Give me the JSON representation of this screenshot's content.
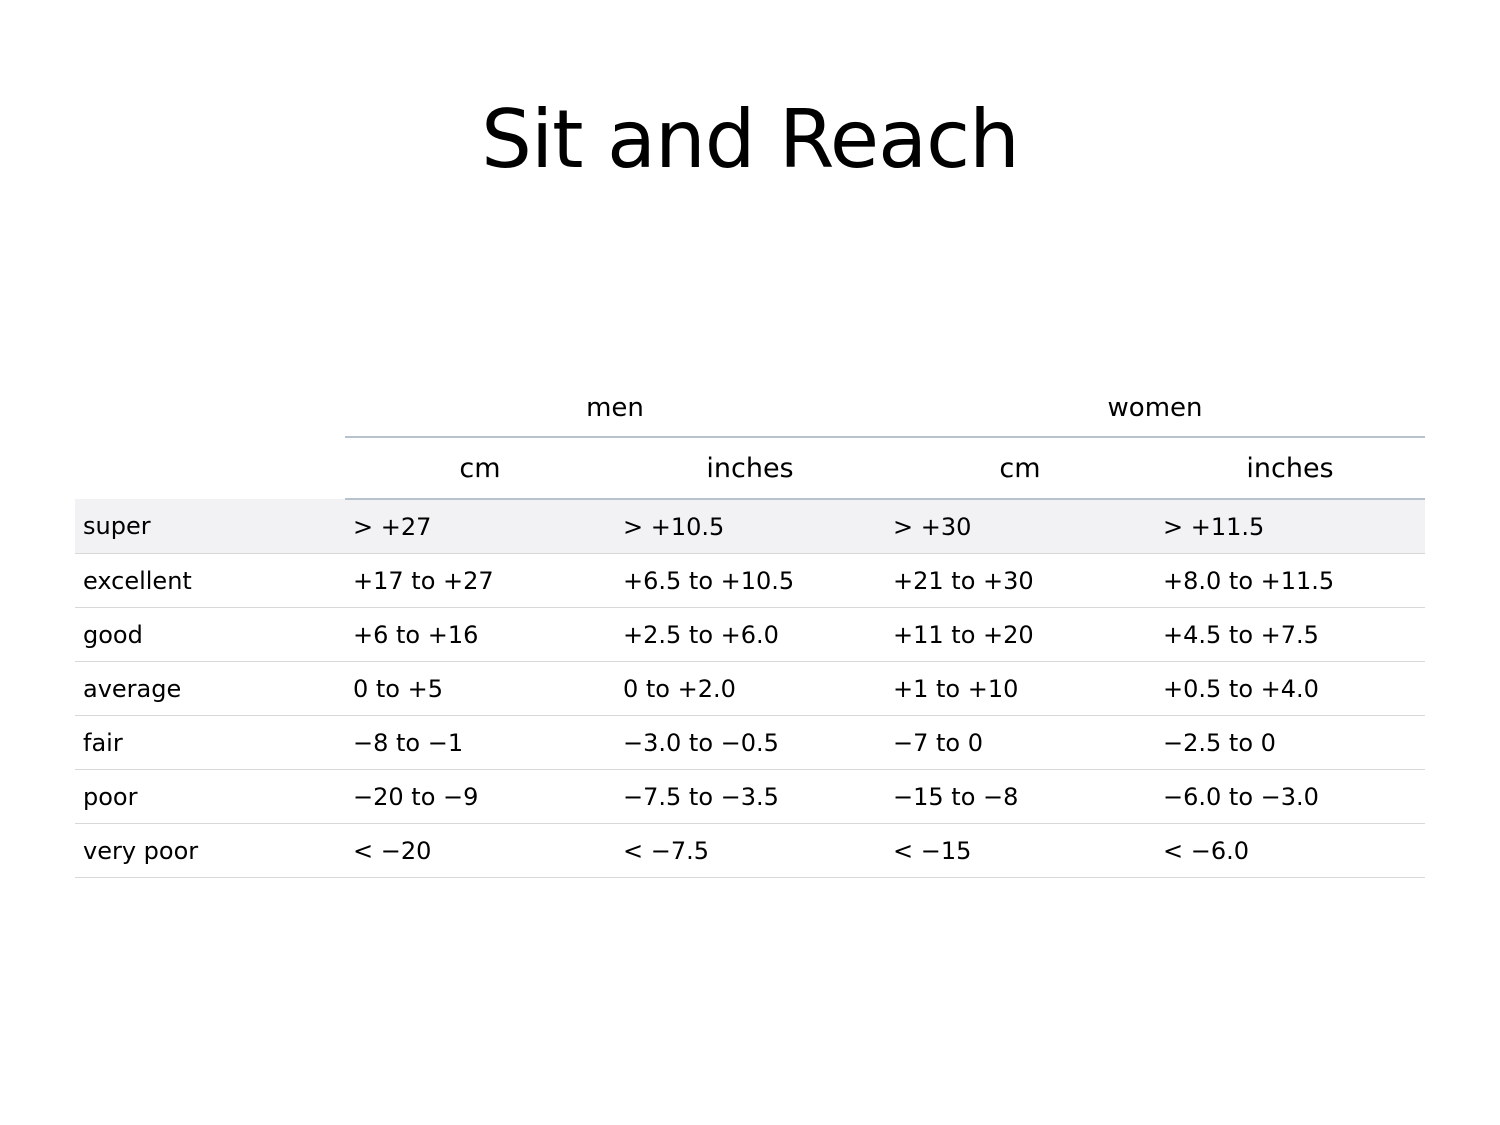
{
  "title": "Sit and Reach",
  "table": {
    "groups": [
      "men",
      "women"
    ],
    "units": [
      "cm",
      "inches",
      "cm",
      "inches"
    ],
    "rows": [
      {
        "label": "super",
        "values": [
          "> +27",
          "> +10.5",
          "> +30",
          "> +11.5"
        ]
      },
      {
        "label": "excellent",
        "values": [
          "+17 to +27",
          "+6.5 to +10.5",
          "+21 to +30",
          "+8.0 to +11.5"
        ]
      },
      {
        "label": "good",
        "values": [
          "+6 to +16",
          "+2.5 to +6.0",
          "+11 to +20",
          "+4.5 to +7.5"
        ]
      },
      {
        "label": "average",
        "values": [
          "0 to +5",
          "0 to +2.0",
          "+1 to +10",
          "+0.5 to +4.0"
        ]
      },
      {
        "label": "fair",
        "values": [
          "−8 to −1",
          "−3.0 to −0.5",
          "−7 to 0",
          "−2.5 to 0"
        ]
      },
      {
        "label": "poor",
        "values": [
          "−20 to −9",
          "−7.5 to −3.5",
          "−15 to −8",
          "−6.0 to −3.0"
        ]
      },
      {
        "label": "very poor",
        "values": [
          "< −20",
          "< −7.5",
          "< −15",
          "< −6.0"
        ]
      }
    ]
  }
}
